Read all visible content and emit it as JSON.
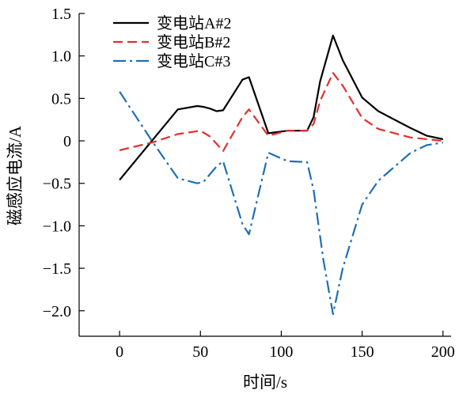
{
  "chart_data": {
    "type": "line",
    "xlabel": "时间/s",
    "ylabel": "磁感应电流/A",
    "xlim": [
      -25,
      205
    ],
    "ylim": [
      -2.3,
      1.5
    ],
    "xticks": [
      0,
      50,
      100,
      150,
      200
    ],
    "xtick_labels": [
      "0",
      "50",
      "100",
      "150",
      "200"
    ],
    "yticks": [
      1.5,
      1.0,
      0.5,
      0,
      -0.5,
      -1.0,
      -1.5,
      -2.0
    ],
    "ytick_labels": [
      "1.5",
      "1.0",
      "0.5",
      "0",
      "−0.5",
      "−1.0",
      "−1.5",
      "−2.0"
    ],
    "grid": false,
    "legend_position": "top-left",
    "series": [
      {
        "name": "变电站A#2",
        "color": "#000000",
        "dash": "solid",
        "x": [
          0,
          36,
          48,
          52,
          56,
          60,
          64,
          76,
          80,
          92,
          104,
          116,
          120,
          124,
          132,
          138,
          150,
          160,
          180,
          190,
          200
        ],
        "y": [
          -0.46,
          0.37,
          0.41,
          0.4,
          0.38,
          0.35,
          0.36,
          0.72,
          0.75,
          0.09,
          0.12,
          0.12,
          0.28,
          0.7,
          1.24,
          0.95,
          0.51,
          0.35,
          0.15,
          0.06,
          0.02
        ]
      },
      {
        "name": "变电站B#2",
        "color": "#e03030",
        "dash": "dash",
        "x": [
          0,
          20,
          36,
          50,
          56,
          64,
          76,
          80,
          92,
          104,
          116,
          120,
          124,
          132,
          138,
          150,
          160,
          180,
          200
        ],
        "y": [
          -0.11,
          -0.02,
          0.08,
          0.12,
          0.05,
          -0.12,
          0.28,
          0.37,
          0.06,
          0.12,
          0.12,
          0.2,
          0.47,
          0.8,
          0.65,
          0.27,
          0.14,
          0.04,
          0.0
        ]
      },
      {
        "name": "变电站C#3",
        "color": "#1f6fb5",
        "dash": "dashdot",
        "x": [
          0,
          20,
          36,
          48,
          52,
          60,
          64,
          76,
          80,
          92,
          104,
          116,
          120,
          126,
          132,
          138,
          150,
          160,
          180,
          190,
          200
        ],
        "y": [
          0.58,
          0.0,
          -0.44,
          -0.5,
          -0.48,
          -0.3,
          -0.24,
          -0.98,
          -1.1,
          -0.14,
          -0.24,
          -0.25,
          -0.58,
          -1.4,
          -2.04,
          -1.5,
          -0.75,
          -0.47,
          -0.14,
          -0.05,
          -0.02
        ]
      }
    ]
  }
}
